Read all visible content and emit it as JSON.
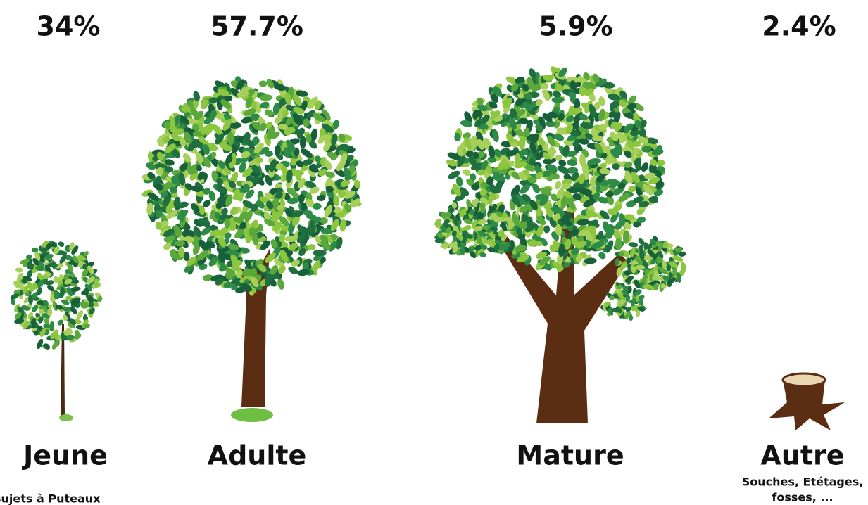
{
  "items": [
    {
      "percent": "34%",
      "label": "Jeune"
    },
    {
      "percent": "57.7%",
      "label": "Adulte"
    },
    {
      "percent": "5.9%",
      "label": "Mature"
    },
    {
      "percent": "2.4%",
      "label": "Autre",
      "note": [
        "Souches, Etétages,",
        "fosses, ..."
      ]
    }
  ],
  "footer": "sujets à Puteaux"
}
